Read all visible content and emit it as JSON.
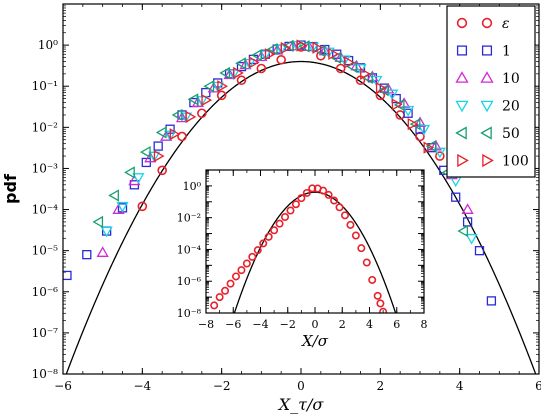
{
  "chart_data": [
    {
      "type": "scatter",
      "role": "main",
      "xlabel": "X_τ/σ",
      "ylabel": "pdf",
      "xlim": [
        -6,
        6
      ],
      "ylim_log10": [
        -8,
        1
      ],
      "yscale": "log",
      "xticks": [
        -6,
        -4,
        -2,
        0,
        2,
        4,
        6
      ],
      "yticks_log10": [
        -8,
        -7,
        -6,
        -5,
        -4,
        -3,
        -2,
        -1,
        0
      ],
      "legend_position": "upper right",
      "reference_curve": "standard normal pdf (solid black line)",
      "series": [
        {
          "name": "ε",
          "marker": "circle",
          "color": "#e8202a",
          "x": [
            -4.0,
            -3.5,
            -3.0,
            -2.5,
            -2.0,
            -1.5,
            -1.0,
            -0.5,
            0.0,
            0.5,
            1.0,
            1.5,
            2.0,
            2.5,
            3.0,
            3.5
          ],
          "y": [
            0.00012,
            0.0009,
            0.006,
            0.022,
            0.06,
            0.14,
            0.27,
            0.44,
            0.9,
            0.55,
            0.27,
            0.14,
            0.06,
            0.02,
            0.006,
            0.002
          ]
        },
        {
          "name": "1",
          "marker": "square",
          "color": "#2a2ad6",
          "x": [
            -5.9,
            -5.4,
            -4.9,
            -4.5,
            -4.2,
            -3.9,
            -3.6,
            -3.3,
            -3.0,
            -2.7,
            -2.4,
            -2.1,
            -1.8,
            -1.5,
            -1.2,
            -0.9,
            -0.6,
            -0.3,
            0.0,
            0.3,
            0.6,
            0.9,
            1.2,
            1.5,
            1.8,
            2.1,
            2.4,
            2.7,
            3.0,
            3.3,
            3.6,
            3.9,
            4.2,
            4.5,
            4.8
          ],
          "y": [
            2.5e-06,
            8e-06,
            3e-05,
            0.00011,
            0.0004,
            0.0014,
            0.0035,
            0.009,
            0.02,
            0.04,
            0.07,
            0.12,
            0.2,
            0.3,
            0.45,
            0.6,
            0.8,
            0.93,
            1.0,
            0.92,
            0.78,
            0.6,
            0.42,
            0.28,
            0.16,
            0.09,
            0.05,
            0.022,
            0.009,
            0.0032,
            0.0009,
            0.0002,
            5e-05,
            1e-05,
            6e-07
          ]
        },
        {
          "name": "10",
          "marker": "triangle-up",
          "color": "#d22ad2",
          "x": [
            -5.0,
            -4.6,
            -4.2,
            -3.8,
            -3.4,
            -3.0,
            -2.6,
            -2.2,
            -1.8,
            -1.4,
            -1.0,
            -0.6,
            -0.2,
            0.2,
            0.6,
            1.0,
            1.4,
            1.8,
            2.2,
            2.6,
            3.0,
            3.4,
            3.8,
            4.2
          ],
          "y": [
            9e-06,
            0.0001,
            0.0005,
            0.0018,
            0.006,
            0.017,
            0.04,
            0.09,
            0.19,
            0.33,
            0.52,
            0.75,
            0.95,
            0.92,
            0.72,
            0.5,
            0.31,
            0.17,
            0.085,
            0.038,
            0.013,
            0.0035,
            0.0007,
            0.0001
          ]
        },
        {
          "name": "20",
          "marker": "triangle-down",
          "color": "#1ad4e6",
          "x": [
            -4.9,
            -4.5,
            -4.1,
            -3.7,
            -3.3,
            -2.9,
            -2.5,
            -2.1,
            -1.7,
            -1.3,
            -0.9,
            -0.5,
            -0.1,
            0.3,
            0.7,
            1.1,
            1.5,
            1.9,
            2.3,
            2.7,
            3.1,
            3.5,
            3.9,
            4.3
          ],
          "y": [
            3e-05,
            0.00012,
            0.0006,
            0.002,
            0.0065,
            0.018,
            0.045,
            0.1,
            0.2,
            0.36,
            0.58,
            0.82,
            0.98,
            0.9,
            0.68,
            0.44,
            0.27,
            0.14,
            0.065,
            0.026,
            0.009,
            0.0025,
            0.0005,
            2e-05
          ]
        },
        {
          "name": "50",
          "marker": "triangle-left",
          "color": "#16a070",
          "x": [
            -5.1,
            -4.7,
            -4.3,
            -3.9,
            -3.5,
            -3.1,
            -2.7,
            -2.3,
            -1.9,
            -1.5,
            -1.1,
            -0.7,
            -0.3,
            0.1,
            0.5,
            0.9,
            1.3,
            1.7,
            2.1,
            2.5,
            2.9,
            3.3,
            3.7,
            4.1
          ],
          "y": [
            5e-05,
            0.00022,
            0.0008,
            0.0025,
            0.0075,
            0.02,
            0.048,
            0.1,
            0.21,
            0.36,
            0.57,
            0.8,
            0.96,
            0.93,
            0.72,
            0.49,
            0.3,
            0.16,
            0.08,
            0.035,
            0.012,
            0.0035,
            0.0008,
            3e-05
          ]
        },
        {
          "name": "100",
          "marker": "triangle-right",
          "color": "#e8202a",
          "x": [
            -3.6,
            -3.2,
            -2.8,
            -2.4,
            -2.0,
            -1.6,
            -1.2,
            -0.8,
            -0.4,
            0.0,
            0.4,
            0.8,
            1.2,
            1.6,
            2.0,
            2.4,
            2.8,
            3.2
          ],
          "y": [
            0.002,
            0.0068,
            0.018,
            0.046,
            0.1,
            0.21,
            0.38,
            0.6,
            0.85,
            0.98,
            0.86,
            0.61,
            0.38,
            0.2,
            0.09,
            0.036,
            0.012,
            0.0032
          ]
        }
      ]
    },
    {
      "type": "scatter",
      "role": "inset",
      "xlabel": "X/σ",
      "ylabel": "",
      "xlim": [
        -8,
        8
      ],
      "ylim_log10": [
        -8,
        1
      ],
      "yscale": "log",
      "xticks": [
        -8,
        -6,
        -4,
        -2,
        0,
        2,
        4,
        6,
        8
      ],
      "yticks_log10": [
        -8,
        -6,
        -4,
        -2,
        0
      ],
      "reference_curve": "standard normal pdf (solid black line)",
      "series": [
        {
          "name": "ε",
          "marker": "circle",
          "color": "#e8202a",
          "x": [
            -7.4,
            -7.0,
            -6.6,
            -6.2,
            -5.8,
            -5.4,
            -5.0,
            -4.6,
            -4.2,
            -3.8,
            -3.4,
            -3.0,
            -2.6,
            -2.2,
            -1.8,
            -1.4,
            -1.0,
            -0.6,
            -0.2,
            0.2,
            0.6,
            1.0,
            1.4,
            1.8,
            2.2,
            2.6,
            3.0,
            3.4,
            3.8,
            4.2,
            4.6,
            4.8,
            5.0
          ],
          "y": [
            3e-08,
            1e-07,
            2.5e-07,
            7e-07,
            2e-06,
            5e-06,
            1.3e-05,
            3.4e-05,
            9e-05,
            0.00024,
            0.00062,
            0.0016,
            0.0042,
            0.011,
            0.028,
            0.07,
            0.17,
            0.36,
            0.7,
            0.68,
            0.5,
            0.27,
            0.12,
            0.045,
            0.014,
            0.0035,
            0.00075,
            0.00012,
            1.5e-05,
            1.2e-06,
            1.2e-07,
            4e-08,
            1.2e-08
          ]
        }
      ]
    }
  ],
  "colors": {
    "axis": "#000000",
    "reference_curve": "#000000",
    "background": "#ffffff"
  }
}
